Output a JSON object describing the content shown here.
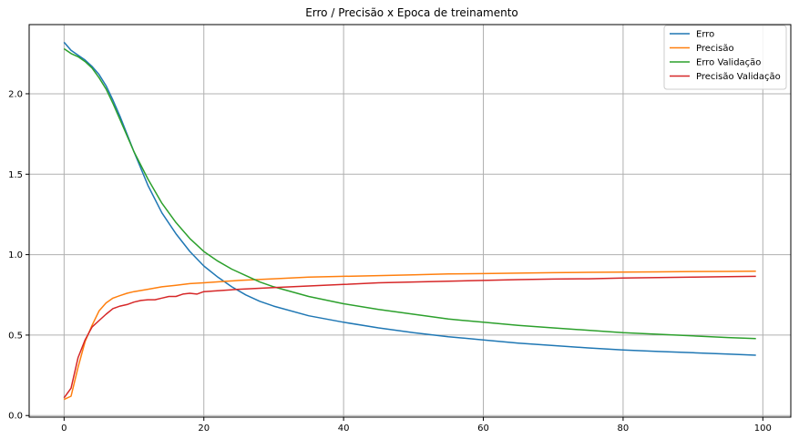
{
  "chart_data": {
    "type": "line",
    "title": "Erro / Precisão x Epoca de treinamento",
    "xlabel": "",
    "ylabel": "",
    "xlim": [
      -5,
      104
    ],
    "ylim": [
      -0.01,
      2.43
    ],
    "xticks": [
      0,
      20,
      40,
      60,
      80,
      100
    ],
    "yticks": [
      0.0,
      0.5,
      1.0,
      1.5,
      2.0
    ],
    "xtick_labels": [
      "0",
      "20",
      "40",
      "60",
      "80",
      "100"
    ],
    "ytick_labels": [
      "0.0",
      "0.5",
      "1.0",
      "1.5",
      "2.0"
    ],
    "grid": true,
    "legend_position": "top-right",
    "series": [
      {
        "name": "Erro",
        "color": "#1f77b4",
        "x": [
          0,
          1,
          2,
          3,
          4,
          5,
          6,
          7,
          8,
          9,
          10,
          12,
          14,
          16,
          18,
          20,
          22,
          24,
          26,
          28,
          30,
          35,
          40,
          45,
          50,
          55,
          60,
          65,
          70,
          75,
          80,
          85,
          90,
          95,
          99
        ],
        "y": [
          2.32,
          2.27,
          2.24,
          2.21,
          2.17,
          2.12,
          2.05,
          1.96,
          1.86,
          1.75,
          1.64,
          1.43,
          1.26,
          1.13,
          1.02,
          0.93,
          0.86,
          0.8,
          0.75,
          0.71,
          0.68,
          0.62,
          0.58,
          0.545,
          0.515,
          0.49,
          0.47,
          0.45,
          0.435,
          0.42,
          0.408,
          0.398,
          0.39,
          0.382,
          0.375
        ]
      },
      {
        "name": "Precisão",
        "color": "#ff7f0e",
        "x": [
          0,
          1,
          2,
          3,
          4,
          5,
          6,
          7,
          8,
          9,
          10,
          12,
          14,
          16,
          18,
          20,
          25,
          30,
          35,
          40,
          45,
          50,
          55,
          60,
          65,
          70,
          75,
          80,
          85,
          90,
          95,
          99
        ],
        "y": [
          0.1,
          0.12,
          0.3,
          0.46,
          0.56,
          0.65,
          0.7,
          0.73,
          0.745,
          0.76,
          0.77,
          0.785,
          0.8,
          0.81,
          0.82,
          0.825,
          0.84,
          0.85,
          0.86,
          0.865,
          0.87,
          0.875,
          0.88,
          0.882,
          0.885,
          0.888,
          0.89,
          0.892,
          0.893,
          0.895,
          0.896,
          0.897
        ]
      },
      {
        "name": "Erro Validação",
        "color": "#2ca02c",
        "x": [
          0,
          1,
          2,
          3,
          4,
          5,
          6,
          7,
          8,
          9,
          10,
          12,
          14,
          16,
          18,
          20,
          22,
          24,
          26,
          28,
          30,
          35,
          40,
          45,
          50,
          55,
          60,
          65,
          70,
          75,
          80,
          85,
          90,
          95,
          99
        ],
        "y": [
          2.28,
          2.25,
          2.23,
          2.2,
          2.16,
          2.1,
          2.03,
          1.94,
          1.84,
          1.74,
          1.64,
          1.47,
          1.32,
          1.2,
          1.1,
          1.02,
          0.96,
          0.91,
          0.87,
          0.83,
          0.8,
          0.74,
          0.695,
          0.66,
          0.63,
          0.6,
          0.58,
          0.56,
          0.545,
          0.53,
          0.515,
          0.505,
          0.495,
          0.485,
          0.478
        ]
      },
      {
        "name": "Precisão Validação",
        "color": "#d62728",
        "x": [
          0,
          1,
          2,
          3,
          4,
          5,
          6,
          7,
          8,
          9,
          10,
          11,
          12,
          13,
          14,
          15,
          16,
          17,
          18,
          19,
          20,
          25,
          30,
          35,
          40,
          45,
          50,
          55,
          60,
          65,
          70,
          75,
          80,
          85,
          90,
          95,
          99
        ],
        "y": [
          0.11,
          0.17,
          0.36,
          0.47,
          0.55,
          0.59,
          0.63,
          0.665,
          0.68,
          0.69,
          0.705,
          0.715,
          0.72,
          0.72,
          0.73,
          0.74,
          0.74,
          0.755,
          0.76,
          0.755,
          0.77,
          0.785,
          0.795,
          0.805,
          0.815,
          0.825,
          0.83,
          0.835,
          0.84,
          0.845,
          0.848,
          0.85,
          0.855,
          0.858,
          0.86,
          0.863,
          0.865
        ]
      }
    ]
  }
}
